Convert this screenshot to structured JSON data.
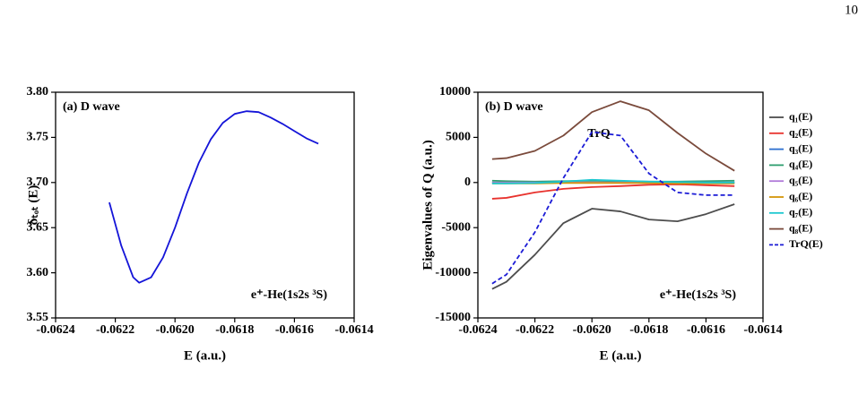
{
  "page_number": "10",
  "chart_data": [
    {
      "type": "line",
      "annotation": "(a) D wave",
      "annotation2": "e⁺-He(1s2s ³S)",
      "xlabel": "E (a.u.)",
      "ylabel": "δₜₒₜ (E)",
      "xlim": [
        -0.0624,
        -0.0614
      ],
      "xticks": [
        -0.0624,
        -0.0622,
        {
          "value": -0.062,
          "label": "-0.0620"
        },
        -0.0618,
        -0.0616,
        -0.0614
      ],
      "ylim": [
        3.55,
        3.8
      ],
      "yticks": [
        {
          "value": 3.55,
          "label": "3.55"
        },
        {
          "value": 3.6,
          "label": "3.60"
        },
        {
          "value": 3.65,
          "label": "3.65"
        },
        {
          "value": 3.7,
          "label": "3.70"
        },
        {
          "value": 3.75,
          "label": "3.75"
        },
        {
          "value": 3.8,
          "label": "3.80"
        }
      ],
      "x": [
        -0.06222,
        -0.06218,
        -0.06214,
        -0.06212,
        -0.06208,
        -0.06204,
        -0.062,
        -0.06196,
        -0.06192,
        -0.06188,
        -0.06184,
        -0.0618,
        -0.06176,
        -0.06172,
        -0.06168,
        -0.06164,
        -0.0616,
        -0.06156,
        -0.06152
      ],
      "series": [
        {
          "color": "#1414d8",
          "values": [
            3.678,
            3.63,
            3.595,
            3.589,
            3.595,
            3.617,
            3.65,
            3.688,
            3.722,
            3.748,
            3.766,
            3.776,
            3.779,
            3.778,
            3.772,
            3.765,
            3.757,
            3.749,
            3.743
          ]
        }
      ]
    },
    {
      "type": "line",
      "annotation": "(b) D wave",
      "annotation2": "e⁺-He(1s2s ³S)",
      "annotation3": "TrQ",
      "xlabel": "E (a.u.)",
      "ylabel": "Eigenvalues of Q (a.u.)",
      "xlim": [
        -0.0624,
        -0.0614
      ],
      "xticks": [
        -0.0624,
        -0.0622,
        {
          "value": -0.062,
          "label": "-0.0620"
        },
        -0.0618,
        -0.0616,
        -0.0614
      ],
      "ylim": [
        -15000,
        10000
      ],
      "yticks": [
        -15000,
        -10000,
        -5000,
        0,
        5000,
        10000
      ],
      "legend": "right",
      "x": [
        -0.06235,
        -0.0623,
        -0.0622,
        -0.0621,
        -0.062,
        -0.0619,
        -0.0618,
        -0.0617,
        -0.0616,
        -0.0615
      ],
      "series": [
        {
          "name": "q₁(E)",
          "color": "#4d4d4d",
          "values": [
            -11800,
            -11000,
            -8000,
            -4500,
            -2900,
            -3200,
            -4100,
            -4300,
            -3500,
            -2400
          ]
        },
        {
          "name": "q₂(E)",
          "color": "#e8322d",
          "values": [
            -1800,
            -1700,
            -1100,
            -700,
            -500,
            -400,
            -250,
            -200,
            -300,
            -400
          ]
        },
        {
          "name": "q₃(E)",
          "color": "#2c6fcf",
          "values": [
            0,
            0,
            0,
            0,
            0,
            0,
            0,
            0,
            0,
            0
          ]
        },
        {
          "name": "q₄(E)",
          "color": "#2e9e6e",
          "values": [
            200,
            150,
            100,
            150,
            200,
            150,
            100,
            100,
            150,
            200
          ]
        },
        {
          "name": "q₅(E)",
          "color": "#b07ad8",
          "values": [
            0,
            0,
            0,
            0,
            0,
            0,
            0,
            0,
            0,
            0
          ]
        },
        {
          "name": "q₆(E)",
          "color": "#d4960a",
          "values": [
            -100,
            -100,
            -100,
            -50,
            -50,
            -50,
            -50,
            -100,
            -100,
            -100
          ]
        },
        {
          "name": "q₇(E)",
          "color": "#1cc7d0",
          "values": [
            -100,
            -100,
            -50,
            100,
            300,
            200,
            100,
            50,
            0,
            0
          ]
        },
        {
          "name": "q₈(E)",
          "color": "#7a4a3b",
          "values": [
            2600,
            2700,
            3500,
            5200,
            7800,
            9000,
            8000,
            5500,
            3200,
            1300
          ]
        },
        {
          "name": "TrQ(E)",
          "color": "#1b1bd6",
          "dash": true,
          "values": [
            -11200,
            -10200,
            -5500,
            500,
            5600,
            5200,
            1000,
            -1100,
            -1400,
            -1400
          ]
        }
      ]
    }
  ]
}
